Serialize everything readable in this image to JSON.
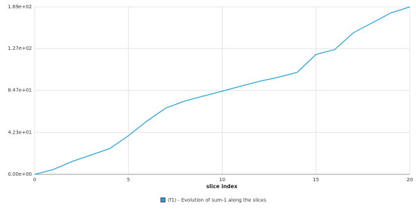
{
  "chart_data": {
    "type": "line",
    "x_label": "slice index",
    "x": [
      0,
      1,
      2,
      3,
      4,
      5,
      6,
      7,
      8,
      9,
      10,
      11,
      12,
      13,
      14,
      15,
      16,
      17,
      18,
      19,
      20
    ],
    "series": [
      {
        "name": "(f1) - Evolution of sum-1 along the slices",
        "color": "#2ea3d8",
        "values": [
          0,
          4.9,
          13,
          19.5,
          26,
          39,
          54,
          67,
          74,
          79,
          84,
          89,
          94,
          98,
          103,
          121,
          126,
          143,
          153,
          163,
          169
        ]
      }
    ],
    "xlim": [
      0,
      20
    ],
    "xticks": [
      0,
      5,
      10,
      15,
      20
    ],
    "ylim": [
      0,
      169
    ],
    "yticks": [
      {
        "value": 0,
        "label": "0.00e+00"
      },
      {
        "value": 42.3,
        "label": "4.23e+01"
      },
      {
        "value": 84.7,
        "label": "8.47e+01"
      },
      {
        "value": 127,
        "label": "1.27e+02"
      },
      {
        "value": 169,
        "label": "1.69e+02"
      }
    ],
    "grid": true
  }
}
